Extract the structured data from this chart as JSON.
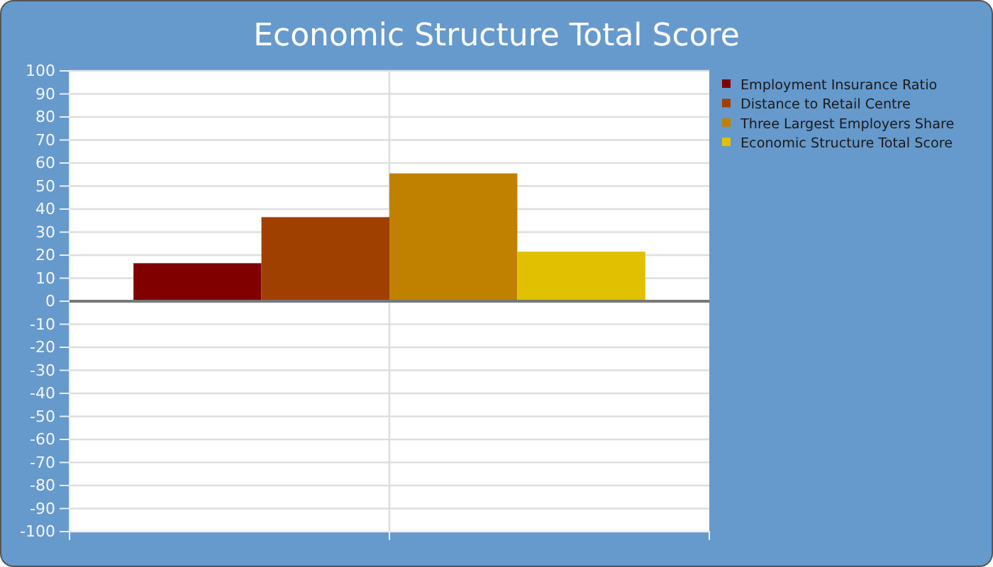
{
  "chart_data": {
    "type": "bar",
    "title": "Economic Structure Total Score",
    "categories": [
      null
    ],
    "series": [
      {
        "name": "Employment Insurance Ratio",
        "color": "#800000",
        "values": [
          16.5
        ]
      },
      {
        "name": "Distance to Retail Centre",
        "color": "#a04000",
        "values": [
          36.5
        ]
      },
      {
        "name": "Three Largest Employers Share",
        "color": "#c08000",
        "values": [
          55.5
        ]
      },
      {
        "name": "Economic Structure Total Score",
        "color": "#e0c000",
        "values": [
          21.5
        ]
      }
    ],
    "ylim": [
      -100,
      100
    ],
    "yticks": [
      -100,
      -90,
      -80,
      -70,
      -60,
      -50,
      -40,
      -30,
      -20,
      -10,
      0,
      10,
      20,
      30,
      40,
      50,
      60,
      70,
      80,
      90,
      100
    ],
    "grid": true,
    "legend": "right"
  }
}
